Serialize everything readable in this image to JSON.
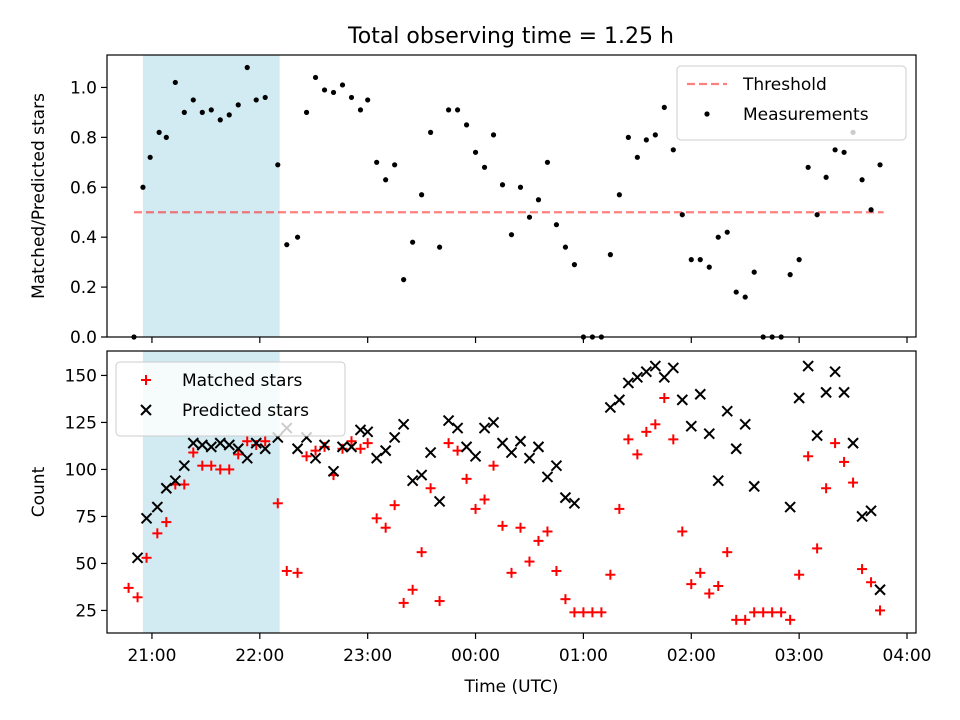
{
  "figure_title": "Total observing time = 1.25 h",
  "colors": {
    "shade": "#add8e6",
    "threshold": "#ff0000",
    "measurement": "#000000",
    "matched": "#ff0000",
    "predicted": "#000000"
  },
  "chart_data": [
    {
      "type": "scatter",
      "title": "Total observing time = 1.25 h",
      "xlabel": "",
      "ylabel": "Matched/Predicted stars",
      "x_is_hours_utc": true,
      "xlim": [
        "20:35",
        "04:05"
      ],
      "ylim": [
        0,
        1.13
      ],
      "yticks": [
        0.0,
        0.2,
        0.4,
        0.6,
        0.8,
        1.0
      ],
      "ytick_labels": [
        "0.0",
        "0.2",
        "0.4",
        "0.6",
        "0.8",
        "1.0"
      ],
      "shaded_span": [
        "20:55",
        "22:11"
      ],
      "legend_position": "upper right",
      "threshold": {
        "name": "Threshold",
        "value": 0.5,
        "x_range": [
          "20:50",
          "03:47"
        ],
        "style": "dashed"
      },
      "series": [
        {
          "name": "Measurements",
          "marker": "dot",
          "points": [
            [
              "20:50",
              0.0
            ],
            [
              "20:55",
              0.6
            ],
            [
              "20:59",
              0.72
            ],
            [
              "21:04",
              0.82
            ],
            [
              "21:08",
              0.8
            ],
            [
              "21:13",
              1.02
            ],
            [
              "21:18",
              0.9
            ],
            [
              "21:23",
              0.95
            ],
            [
              "21:28",
              0.9
            ],
            [
              "21:33",
              0.91
            ],
            [
              "21:38",
              0.87
            ],
            [
              "21:43",
              0.89
            ],
            [
              "21:48",
              0.93
            ],
            [
              "21:53",
              1.08
            ],
            [
              "21:58",
              0.95
            ],
            [
              "22:03",
              0.96
            ],
            [
              "22:10",
              0.69
            ],
            [
              "22:15",
              0.37
            ],
            [
              "22:21",
              0.4
            ],
            [
              "22:26",
              0.9
            ],
            [
              "22:31",
              1.04
            ],
            [
              "22:36",
              0.99
            ],
            [
              "22:41",
              0.98
            ],
            [
              "22:46",
              1.01
            ],
            [
              "22:51",
              0.96
            ],
            [
              "22:56",
              0.91
            ],
            [
              "23:00",
              0.95
            ],
            [
              "23:05",
              0.7
            ],
            [
              "23:10",
              0.63
            ],
            [
              "23:15",
              0.69
            ],
            [
              "23:20",
              0.23
            ],
            [
              "23:25",
              0.38
            ],
            [
              "23:30",
              0.57
            ],
            [
              "23:35",
              0.82
            ],
            [
              "23:40",
              0.36
            ],
            [
              "23:45",
              0.91
            ],
            [
              "23:50",
              0.91
            ],
            [
              "23:55",
              0.85
            ],
            [
              "00:00",
              0.74
            ],
            [
              "00:05",
              0.68
            ],
            [
              "00:10",
              0.81
            ],
            [
              "00:15",
              0.61
            ],
            [
              "00:20",
              0.41
            ],
            [
              "00:25",
              0.6
            ],
            [
              "00:30",
              0.48
            ],
            [
              "00:35",
              0.55
            ],
            [
              "00:40",
              0.7
            ],
            [
              "00:45",
              0.45
            ],
            [
              "00:50",
              0.36
            ],
            [
              "00:55",
              0.29
            ],
            [
              "01:00",
              0.0
            ],
            [
              "01:05",
              0.0
            ],
            [
              "01:10",
              0.0
            ],
            [
              "01:15",
              0.33
            ],
            [
              "01:20",
              0.57
            ],
            [
              "01:25",
              0.8
            ],
            [
              "01:30",
              0.72
            ],
            [
              "01:35",
              0.79
            ],
            [
              "01:40",
              0.81
            ],
            [
              "01:45",
              0.92
            ],
            [
              "01:50",
              0.75
            ],
            [
              "01:55",
              0.49
            ],
            [
              "02:00",
              0.31
            ],
            [
              "02:05",
              0.31
            ],
            [
              "02:10",
              0.28
            ],
            [
              "02:15",
              0.4
            ],
            [
              "02:20",
              0.42
            ],
            [
              "02:25",
              0.18
            ],
            [
              "02:30",
              0.16
            ],
            [
              "02:35",
              0.26
            ],
            [
              "02:40",
              0.0
            ],
            [
              "02:45",
              0.0
            ],
            [
              "02:50",
              0.0
            ],
            [
              "02:55",
              0.25
            ],
            [
              "03:00",
              0.31
            ],
            [
              "03:05",
              0.68
            ],
            [
              "03:10",
              0.49
            ],
            [
              "03:15",
              0.64
            ],
            [
              "03:20",
              0.75
            ],
            [
              "03:25",
              0.74
            ],
            [
              "03:30",
              0.82
            ],
            [
              "03:35",
              0.63
            ],
            [
              "03:40",
              0.51
            ],
            [
              "03:45",
              0.69
            ]
          ]
        }
      ]
    },
    {
      "type": "scatter",
      "title": "",
      "xlabel": "Time (UTC)",
      "ylabel": "Count",
      "x_is_hours_utc": true,
      "xlim": [
        "20:35",
        "04:05"
      ],
      "ylim": [
        13,
        163
      ],
      "yticks": [
        25,
        50,
        75,
        100,
        125,
        150
      ],
      "ytick_labels": [
        "25",
        "50",
        "75",
        "100",
        "125",
        "150"
      ],
      "xticks": [
        "21:00",
        "22:00",
        "23:00",
        "00:00",
        "01:00",
        "02:00",
        "03:00",
        "04:00"
      ],
      "xtick_labels": [
        "21:00",
        "22:00",
        "23:00",
        "00:00",
        "01:00",
        "02:00",
        "03:00",
        "04:00"
      ],
      "shaded_span": [
        "20:55",
        "22:11"
      ],
      "legend_position": "upper left",
      "series": [
        {
          "name": "Matched stars",
          "marker": "plus",
          "points": [
            [
              "20:47",
              37
            ],
            [
              "20:52",
              32
            ],
            [
              "20:57",
              53
            ],
            [
              "21:03",
              66
            ],
            [
              "21:08",
              72
            ],
            [
              "21:13",
              92
            ],
            [
              "21:18",
              92
            ],
            [
              "21:23",
              109
            ],
            [
              "21:28",
              102
            ],
            [
              "21:33",
              102
            ],
            [
              "21:38",
              100
            ],
            [
              "21:43",
              100
            ],
            [
              "21:48",
              108
            ],
            [
              "21:53",
              115
            ],
            [
              "21:58",
              113
            ],
            [
              "22:03",
              115
            ],
            [
              "22:10",
              82
            ],
            [
              "22:15",
              46
            ],
            [
              "22:21",
              45
            ],
            [
              "22:26",
              107
            ],
            [
              "22:31",
              110
            ],
            [
              "22:36",
              112
            ],
            [
              "22:41",
              97
            ],
            [
              "22:46",
              111
            ],
            [
              "22:51",
              115
            ],
            [
              "22:56",
              111
            ],
            [
              "23:00",
              114
            ],
            [
              "23:05",
              74
            ],
            [
              "23:10",
              69
            ],
            [
              "23:15",
              81
            ],
            [
              "23:20",
              29
            ],
            [
              "23:25",
              36
            ],
            [
              "23:30",
              56
            ],
            [
              "23:35",
              90
            ],
            [
              "23:40",
              30
            ],
            [
              "23:45",
              114
            ],
            [
              "23:50",
              110
            ],
            [
              "23:55",
              95
            ],
            [
              "00:00",
              79
            ],
            [
              "00:05",
              84
            ],
            [
              "00:10",
              102
            ],
            [
              "00:15",
              70
            ],
            [
              "00:20",
              45
            ],
            [
              "00:25",
              69
            ],
            [
              "00:30",
              51
            ],
            [
              "00:35",
              62
            ],
            [
              "00:40",
              67
            ],
            [
              "00:45",
              46
            ],
            [
              "00:50",
              31
            ],
            [
              "00:55",
              24
            ],
            [
              "01:00",
              24
            ],
            [
              "01:05",
              24
            ],
            [
              "01:10",
              24
            ],
            [
              "01:15",
              44
            ],
            [
              "01:20",
              79
            ],
            [
              "01:25",
              116
            ],
            [
              "01:30",
              108
            ],
            [
              "01:35",
              120
            ],
            [
              "01:40",
              124
            ],
            [
              "01:45",
              138
            ],
            [
              "01:50",
              116
            ],
            [
              "01:55",
              67
            ],
            [
              "02:00",
              39
            ],
            [
              "02:05",
              45
            ],
            [
              "02:10",
              34
            ],
            [
              "02:15",
              38
            ],
            [
              "02:20",
              56
            ],
            [
              "02:25",
              20
            ],
            [
              "02:30",
              20
            ],
            [
              "02:35",
              24
            ],
            [
              "02:40",
              24
            ],
            [
              "02:45",
              24
            ],
            [
              "02:50",
              24
            ],
            [
              "02:55",
              20
            ],
            [
              "03:00",
              44
            ],
            [
              "03:05",
              107
            ],
            [
              "03:10",
              58
            ],
            [
              "03:15",
              90
            ],
            [
              "03:20",
              114
            ],
            [
              "03:25",
              104
            ],
            [
              "03:30",
              93
            ],
            [
              "03:35",
              47
            ],
            [
              "03:40",
              40
            ],
            [
              "03:45",
              25
            ]
          ]
        },
        {
          "name": "Predicted stars",
          "marker": "cross",
          "points": [
            [
              "20:52",
              53
            ],
            [
              "20:57",
              74
            ],
            [
              "21:03",
              80
            ],
            [
              "21:08",
              90
            ],
            [
              "21:13",
              94
            ],
            [
              "21:18",
              102
            ],
            [
              "21:23",
              114
            ],
            [
              "21:28",
              113
            ],
            [
              "21:33",
              112
            ],
            [
              "21:38",
              114
            ],
            [
              "21:43",
              113
            ],
            [
              "21:48",
              111
            ],
            [
              "21:53",
              106
            ],
            [
              "21:58",
              114
            ],
            [
              "22:03",
              111
            ],
            [
              "22:10",
              117
            ],
            [
              "22:15",
              122
            ],
            [
              "22:21",
              111
            ],
            [
              "22:26",
              117
            ],
            [
              "22:31",
              106
            ],
            [
              "22:36",
              113
            ],
            [
              "22:41",
              99
            ],
            [
              "22:46",
              112
            ],
            [
              "22:51",
              112
            ],
            [
              "22:56",
              121
            ],
            [
              "23:00",
              120
            ],
            [
              "23:05",
              106
            ],
            [
              "23:10",
              110
            ],
            [
              "23:15",
              117
            ],
            [
              "23:20",
              124
            ],
            [
              "23:25",
              94
            ],
            [
              "23:30",
              97
            ],
            [
              "23:35",
              109
            ],
            [
              "23:40",
              83
            ],
            [
              "23:45",
              126
            ],
            [
              "23:50",
              122
            ],
            [
              "23:55",
              112
            ],
            [
              "00:00",
              107
            ],
            [
              "00:05",
              122
            ],
            [
              "00:10",
              125
            ],
            [
              "00:15",
              114
            ],
            [
              "00:20",
              109
            ],
            [
              "00:25",
              115
            ],
            [
              "00:30",
              106
            ],
            [
              "00:35",
              112
            ],
            [
              "00:40",
              96
            ],
            [
              "00:45",
              102
            ],
            [
              "00:50",
              85
            ],
            [
              "00:55",
              82
            ],
            [
              "01:15",
              133
            ],
            [
              "01:20",
              137
            ],
            [
              "01:25",
              146
            ],
            [
              "01:30",
              149
            ],
            [
              "01:35",
              152
            ],
            [
              "01:40",
              155
            ],
            [
              "01:45",
              149
            ],
            [
              "01:50",
              154
            ],
            [
              "01:55",
              137
            ],
            [
              "02:00",
              123
            ],
            [
              "02:05",
              140
            ],
            [
              "02:10",
              119
            ],
            [
              "02:15",
              94
            ],
            [
              "02:20",
              131
            ],
            [
              "02:25",
              111
            ],
            [
              "02:30",
              124
            ],
            [
              "02:35",
              91
            ],
            [
              "02:55",
              80
            ],
            [
              "03:00",
              138
            ],
            [
              "03:05",
              155
            ],
            [
              "03:10",
              118
            ],
            [
              "03:15",
              141
            ],
            [
              "03:20",
              152
            ],
            [
              "03:25",
              141
            ],
            [
              "03:30",
              114
            ],
            [
              "03:35",
              75
            ],
            [
              "03:40",
              78
            ],
            [
              "03:45",
              36
            ]
          ]
        }
      ]
    }
  ]
}
